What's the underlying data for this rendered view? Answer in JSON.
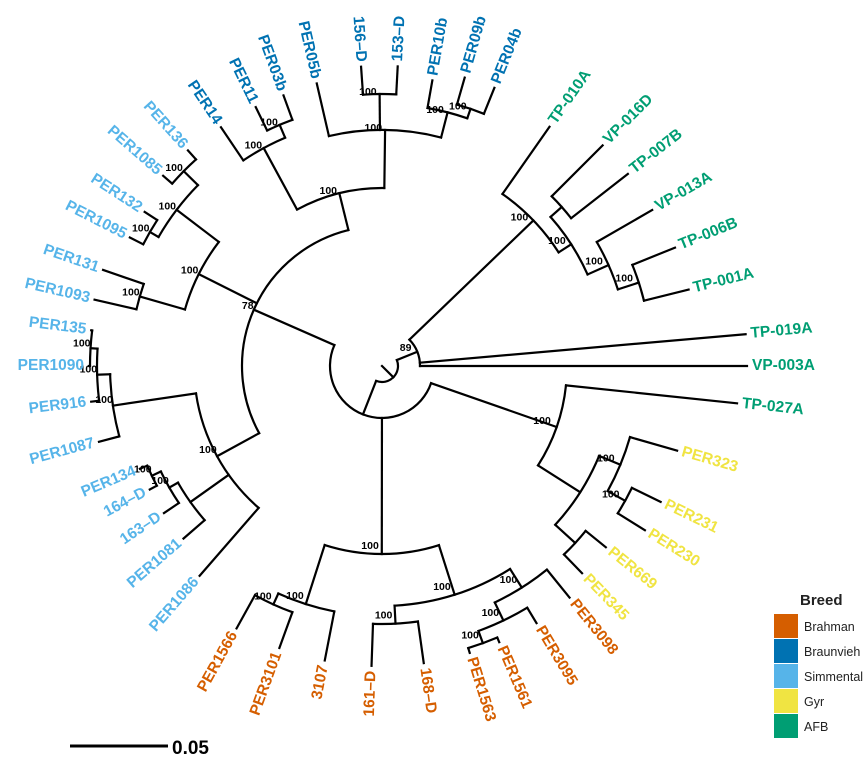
{
  "legend": {
    "title": "Breed",
    "items": [
      {
        "label": "Brahman",
        "color": "#D55E00"
      },
      {
        "label": "Braunvieh",
        "color": "#0072B2"
      },
      {
        "label": "Simmental",
        "color": "#56B4E9"
      },
      {
        "label": "Gyr",
        "color": "#F0E442"
      },
      {
        "label": "AFB",
        "color": "#009E73"
      }
    ]
  },
  "scale_bar": {
    "label": "0.05",
    "value": 0.05
  },
  "tree": {
    "layout": "circular",
    "tips": [
      {
        "name": "TP-010A",
        "breed": "AFB"
      },
      {
        "name": "VP-016D",
        "breed": "AFB"
      },
      {
        "name": "TP-007B",
        "breed": "AFB"
      },
      {
        "name": "VP-013A",
        "breed": "AFB"
      },
      {
        "name": "TP-006B",
        "breed": "AFB"
      },
      {
        "name": "TP-001A",
        "breed": "AFB"
      },
      {
        "name": "TP-019A",
        "breed": "AFB"
      },
      {
        "name": "VP-003A",
        "breed": "AFB"
      },
      {
        "name": "TP-027A",
        "breed": "AFB"
      },
      {
        "name": "PER323",
        "breed": "Gyr"
      },
      {
        "name": "PER231",
        "breed": "Gyr"
      },
      {
        "name": "PER230",
        "breed": "Gyr"
      },
      {
        "name": "PER669",
        "breed": "Gyr"
      },
      {
        "name": "PER345",
        "breed": "Gyr"
      },
      {
        "name": "PER3098",
        "breed": "Brahman"
      },
      {
        "name": "PER3095",
        "breed": "Brahman"
      },
      {
        "name": "PER1561",
        "breed": "Brahman"
      },
      {
        "name": "PER1563",
        "breed": "Brahman"
      },
      {
        "name": "168–D",
        "breed": "Brahman"
      },
      {
        "name": "161–D",
        "breed": "Brahman"
      },
      {
        "name": "3107",
        "breed": "Brahman"
      },
      {
        "name": "PER3101",
        "breed": "Brahman"
      },
      {
        "name": "PER1566",
        "breed": "Brahman"
      },
      {
        "name": "PER1086",
        "breed": "Simmental"
      },
      {
        "name": "PER1081",
        "breed": "Simmental"
      },
      {
        "name": "163–D",
        "breed": "Simmental"
      },
      {
        "name": "164–D",
        "breed": "Simmental"
      },
      {
        "name": "PER134",
        "breed": "Simmental"
      },
      {
        "name": "PER1087",
        "breed": "Simmental"
      },
      {
        "name": "PER916",
        "breed": "Simmental"
      },
      {
        "name": "PER1090",
        "breed": "Simmental"
      },
      {
        "name": "PER135",
        "breed": "Simmental"
      },
      {
        "name": "PER1093",
        "breed": "Simmental"
      },
      {
        "name": "PER131",
        "breed": "Simmental"
      },
      {
        "name": "PER1095",
        "breed": "Simmental"
      },
      {
        "name": "PER132",
        "breed": "Simmental"
      },
      {
        "name": "PER1085",
        "breed": "Simmental"
      },
      {
        "name": "PER136",
        "breed": "Simmental"
      },
      {
        "name": "PER14",
        "breed": "Braunvieh"
      },
      {
        "name": "PER11",
        "breed": "Braunvieh"
      },
      {
        "name": "PER03b",
        "breed": "Braunvieh"
      },
      {
        "name": "PER05b",
        "breed": "Braunvieh"
      },
      {
        "name": "156–D",
        "breed": "Braunvieh"
      },
      {
        "name": "153–D",
        "breed": "Braunvieh"
      },
      {
        "name": "PER10b",
        "breed": "Braunvieh"
      },
      {
        "name": "PER09b",
        "breed": "Braunvieh"
      },
      {
        "name": "PER04b",
        "breed": "Braunvieh"
      }
    ],
    "support_values": [
      "100",
      "100",
      "100",
      "100",
      "89",
      "100",
      "100",
      "100",
      "100",
      "100",
      "100",
      "100",
      "100",
      "100",
      "100",
      "100",
      "100",
      "100",
      "100",
      "100",
      "100",
      "100",
      "100",
      "100",
      "100",
      "100",
      "100",
      "100",
      "100",
      "100",
      "100",
      "100",
      "100",
      "100",
      "78"
    ]
  }
}
